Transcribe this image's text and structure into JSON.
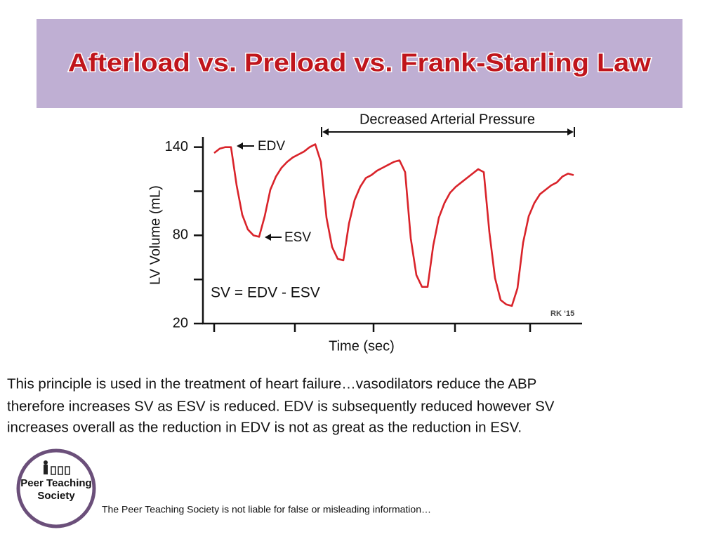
{
  "title": "Afterload vs. Preload vs. Frank-Starling Law",
  "chart_data": {
    "type": "line",
    "ylabel": "LV Volume (mL)",
    "xlabel": "Time (sec)",
    "annotations": [
      "EDV",
      "ESV",
      "SV = EDV - ESV",
      "Decreased Arterial Pressure",
      "RK ‘15"
    ],
    "categories": [
      null,
      null,
      null,
      null,
      null,
      null,
      null,
      null,
      null,
      null,
      null,
      null,
      null,
      null,
      null,
      null,
      null,
      null,
      null,
      null,
      null,
      null,
      null,
      null,
      null,
      null,
      null,
      null,
      null,
      null,
      null,
      null,
      null,
      null,
      null,
      null,
      null,
      null,
      null,
      null,
      null,
      null,
      null,
      null,
      null,
      null,
      null,
      null,
      null,
      null,
      null,
      null,
      null,
      null,
      null,
      null,
      null,
      null,
      null,
      null,
      null,
      null,
      null,
      null,
      null
    ],
    "series": [
      {
        "name": null,
        "color": "#d9232a",
        "values": [
          136,
          139,
          140,
          140,
          114,
          94,
          84,
          80,
          79,
          93,
          111,
          120,
          126,
          130,
          133,
          135,
          137,
          140,
          142,
          130,
          92,
          72,
          64,
          63,
          88,
          104,
          113,
          119,
          121,
          124,
          126,
          128,
          130,
          131,
          123,
          78,
          53,
          45,
          45,
          73,
          92,
          102,
          109,
          113,
          116,
          119,
          122,
          125,
          123,
          82,
          51,
          36,
          33,
          32,
          44,
          75,
          93,
          102,
          108,
          111,
          114,
          116,
          120,
          122,
          121
        ]
      }
    ],
    "ylim": [
      20,
      147
    ],
    "yticks": [
      20,
      80,
      140
    ],
    "minor_yticks": [
      50,
      110
    ]
  },
  "body": [
    "This principle is used in the treatment of heart failure…vasodilators reduce the ABP",
    "therefore increases SV as ESV is reduced. EDV is subsequently  reduced however SV",
    "increases overall as the reduction in EDV is not as great as the reduction in ESV."
  ],
  "logo": [
    "Peer Teaching",
    "Society"
  ],
  "footer": "The Peer Teaching Society is not liable for false or misleading information…"
}
